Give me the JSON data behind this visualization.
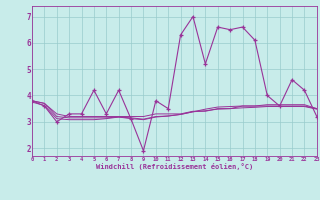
{
  "xlabel": "Windchill (Refroidissement éolien,°C)",
  "bg_color": "#c8ecea",
  "line_color": "#993399",
  "grid_color": "#99cccc",
  "main_x": [
    0,
    1,
    2,
    3,
    4,
    5,
    6,
    7,
    8,
    9,
    10,
    11,
    12,
    13,
    14,
    15,
    16,
    17,
    18,
    19,
    20,
    21,
    22,
    23
  ],
  "main_y": [
    3.8,
    3.6,
    3.0,
    3.3,
    3.3,
    4.2,
    3.3,
    4.2,
    3.1,
    1.9,
    3.8,
    3.5,
    6.3,
    7.0,
    5.2,
    6.6,
    6.5,
    6.6,
    6.1,
    4.0,
    3.6,
    4.6,
    4.2,
    3.2
  ],
  "smooth_x1": [
    0,
    1,
    2,
    3,
    4,
    5,
    6,
    7,
    8,
    9,
    10,
    11,
    12,
    13,
    14,
    15,
    16,
    17,
    18,
    19,
    20,
    21,
    22,
    23
  ],
  "smooth_y1": [
    3.8,
    3.7,
    3.3,
    3.2,
    3.2,
    3.2,
    3.2,
    3.2,
    3.2,
    3.2,
    3.3,
    3.3,
    3.3,
    3.4,
    3.4,
    3.5,
    3.5,
    3.6,
    3.6,
    3.6,
    3.6,
    3.6,
    3.6,
    3.5
  ],
  "smooth_x2": [
    0,
    1,
    2,
    3,
    4,
    5,
    6,
    7,
    8,
    9,
    10,
    11,
    12,
    13,
    14,
    15,
    16,
    17,
    18,
    19,
    20,
    21,
    22,
    23
  ],
  "smooth_y2": [
    3.8,
    3.7,
    3.2,
    3.15,
    3.15,
    3.15,
    3.15,
    3.18,
    3.15,
    3.1,
    3.2,
    3.22,
    3.28,
    3.38,
    3.48,
    3.56,
    3.58,
    3.6,
    3.6,
    3.65,
    3.65,
    3.65,
    3.65,
    3.5
  ],
  "smooth_x3": [
    0,
    1,
    2,
    3,
    4,
    5,
    6,
    7,
    8,
    9,
    10,
    11,
    12,
    13,
    14,
    15,
    16,
    17,
    18,
    19,
    20,
    21,
    22,
    23
  ],
  "smooth_y3": [
    3.75,
    3.62,
    3.12,
    3.08,
    3.08,
    3.08,
    3.12,
    3.18,
    3.12,
    3.08,
    3.18,
    3.22,
    3.28,
    3.38,
    3.42,
    3.48,
    3.5,
    3.53,
    3.55,
    3.58,
    3.58,
    3.58,
    3.58,
    3.48
  ],
  "xlim": [
    0,
    23
  ],
  "ylim": [
    1.7,
    7.4
  ],
  "yticks": [
    2,
    3,
    4,
    5,
    6,
    7
  ],
  "xticks": [
    0,
    1,
    2,
    3,
    4,
    5,
    6,
    7,
    8,
    9,
    10,
    11,
    12,
    13,
    14,
    15,
    16,
    17,
    18,
    19,
    20,
    21,
    22,
    23
  ]
}
